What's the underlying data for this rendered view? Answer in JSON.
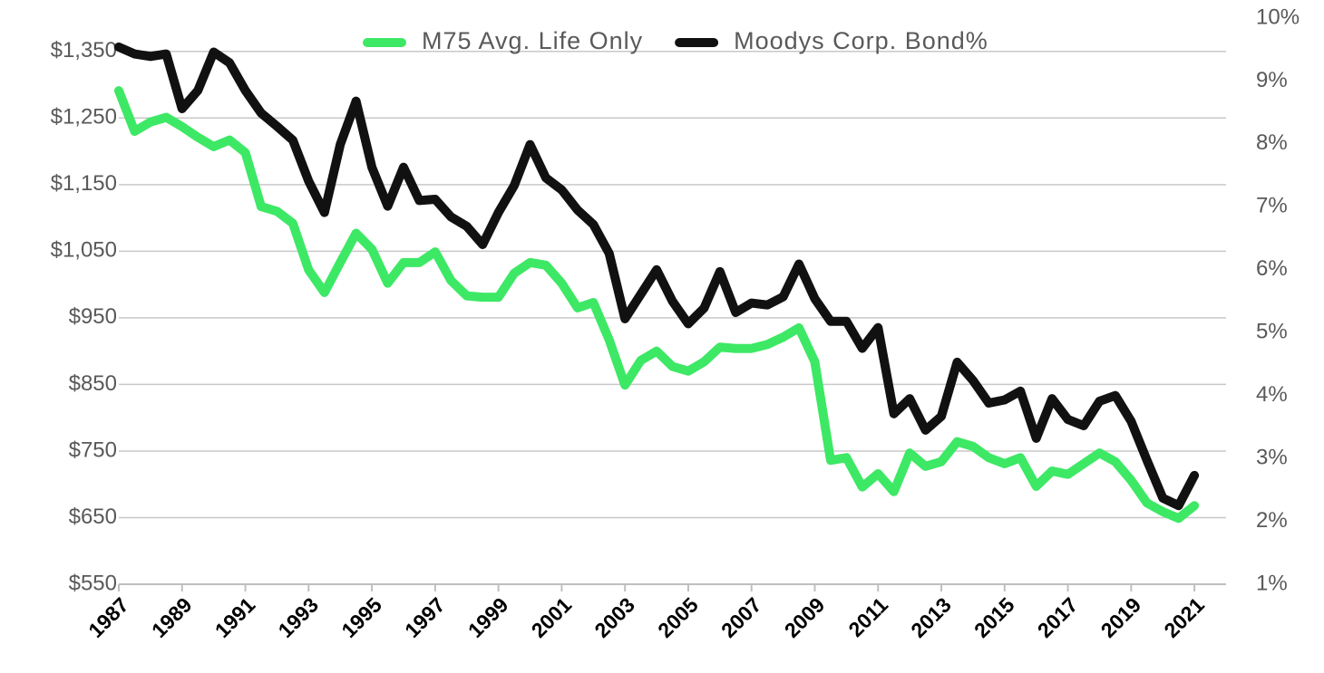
{
  "chart_data": {
    "type": "line",
    "x": [
      1987,
      1987.5,
      1988,
      1988.5,
      1989,
      1989.5,
      1990,
      1990.5,
      1991,
      1991.5,
      1992,
      1992.5,
      1993,
      1993.5,
      1994,
      1994.5,
      1995,
      1995.5,
      1996,
      1996.5,
      1997,
      1997.5,
      1998,
      1998.5,
      1999,
      1999.5,
      2000,
      2000.5,
      2001,
      2001.5,
      2002,
      2002.5,
      2003,
      2003.5,
      2004,
      2004.5,
      2005,
      2005.5,
      2006,
      2006.5,
      2007,
      2007.5,
      2008,
      2008.5,
      2009,
      2009.5,
      2010,
      2010.5,
      2011,
      2011.5,
      2012,
      2012.5,
      2013,
      2013.5,
      2014,
      2014.5,
      2015,
      2015.5,
      2016,
      2016.5,
      2017,
      2017.5,
      2018,
      2018.5,
      2019,
      2019.5,
      2020,
      2020.5,
      2021
    ],
    "series": [
      {
        "name": "M75 Avg. Life Only",
        "color": "#3de865",
        "values": [
          1291,
          1230,
          1244,
          1251,
          1237,
          1221,
          1207,
          1217,
          1198,
          1117,
          1110,
          1092,
          1022,
          988,
          1033,
          1077,
          1053,
          1002,
          1033,
          1033,
          1049,
          1006,
          983,
          981,
          981,
          1017,
          1033,
          1029,
          1002,
          965,
          973,
          917,
          849,
          886,
          900,
          877,
          870,
          884,
          906,
          904,
          904,
          910,
          921,
          935,
          884,
          736,
          740,
          696,
          716,
          689,
          747,
          727,
          734,
          764,
          757,
          740,
          731,
          740,
          697,
          720,
          715,
          731,
          747,
          734,
          706,
          672,
          659,
          649,
          668
        ]
      },
      {
        "name": "Moodys Corp. Bond%",
        "color": "#111111",
        "axis": "y2",
        "values": [
          9.54,
          9.43,
          9.39,
          9.43,
          8.56,
          8.85,
          9.46,
          9.29,
          8.85,
          8.49,
          8.28,
          8.06,
          7.41,
          6.91,
          7.99,
          8.68,
          7.63,
          7.01,
          7.63,
          7.1,
          7.12,
          6.84,
          6.69,
          6.4,
          6.91,
          7.34,
          7.99,
          7.46,
          7.27,
          6.95,
          6.72,
          6.26,
          5.22,
          5.61,
          6.0,
          5.5,
          5.14,
          5.39,
          5.97,
          5.32,
          5.47,
          5.44,
          5.57,
          6.09,
          5.54,
          5.18,
          5.18,
          4.75,
          5.08,
          3.71,
          3.95,
          3.45,
          3.67,
          4.53,
          4.24,
          3.88,
          3.93,
          4.07,
          3.32,
          3.95,
          3.62,
          3.52,
          3.91,
          4.0,
          3.59,
          2.97,
          2.37,
          2.25,
          2.73
        ]
      }
    ],
    "xlim": [
      1987,
      2022
    ],
    "xticks": [
      1987,
      1989,
      1991,
      1993,
      1995,
      1997,
      1999,
      2001,
      2003,
      2005,
      2007,
      2009,
      2011,
      2013,
      2015,
      2017,
      2019,
      2021
    ],
    "ylim": [
      550,
      1400
    ],
    "yticks": [
      {
        "value": 550,
        "label": "$550"
      },
      {
        "value": 650,
        "label": "$650"
      },
      {
        "value": 750,
        "label": "$750"
      },
      {
        "value": 850,
        "label": "$850"
      },
      {
        "value": 950,
        "label": "$950"
      },
      {
        "value": 1050,
        "label": "$1,050"
      },
      {
        "value": 1150,
        "label": "$1,150"
      },
      {
        "value": 1250,
        "label": "$1,250"
      },
      {
        "value": 1350,
        "label": "$1,350"
      }
    ],
    "y2lim": [
      1,
      10
    ],
    "y2ticks": [
      {
        "value": 1,
        "label": "1%"
      },
      {
        "value": 2,
        "label": "2%"
      },
      {
        "value": 3,
        "label": "3%"
      },
      {
        "value": 4,
        "label": "4%"
      },
      {
        "value": 5,
        "label": "5%"
      },
      {
        "value": 6,
        "label": "6%"
      },
      {
        "value": 7,
        "label": "7%"
      },
      {
        "value": 8,
        "label": "8%"
      },
      {
        "value": 9,
        "label": "9%"
      },
      {
        "value": 10,
        "label": "10%"
      }
    ],
    "grid": true,
    "legend": "top"
  }
}
